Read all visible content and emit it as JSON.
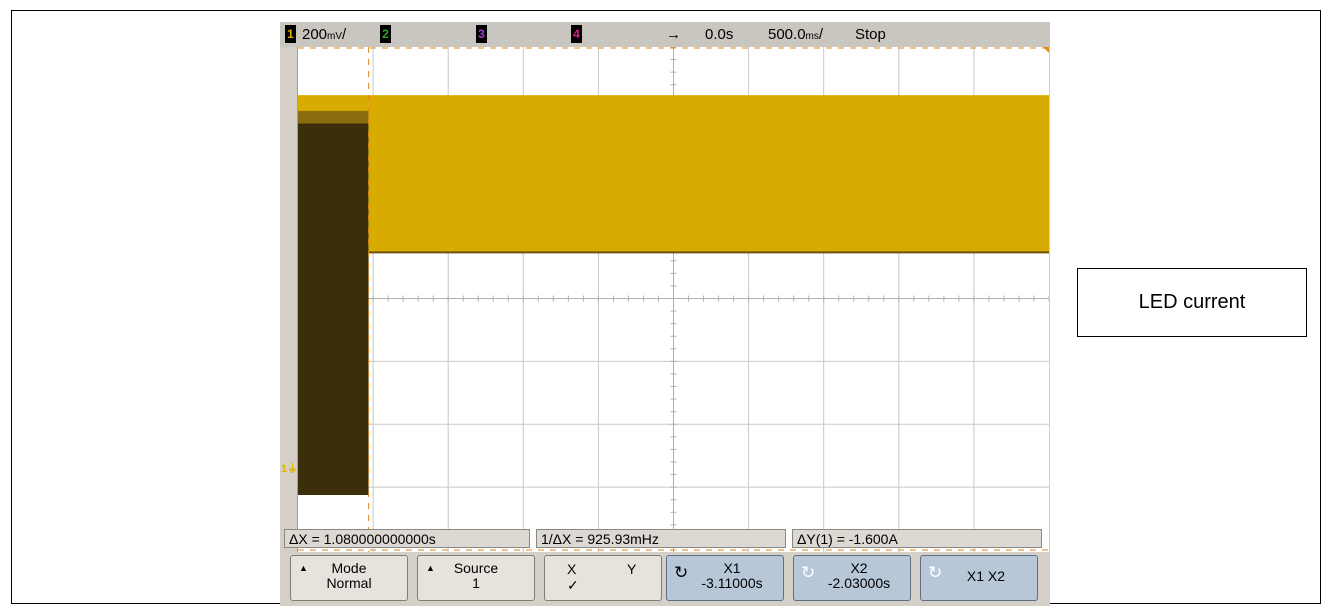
{
  "annotation": {
    "label": "LED current"
  },
  "topbar": {
    "ch1": "1",
    "ch1_scale": "200",
    "ch2": "2",
    "ch3": "3",
    "ch4": "4",
    "trigger_arrow": "→",
    "delay": "0.0s",
    "timebase": "500.0",
    "run_state": "Stop"
  },
  "measurements": {
    "dx": "ΔX = 1.080000000000s",
    "inv_dx": "1/ΔX = 925.93mHz",
    "dy": "ΔY(1) = -1.600A"
  },
  "softkeys": [
    {
      "line1": "Mode",
      "line2": "Normal"
    },
    {
      "line1": "Source",
      "line2": "1"
    },
    {
      "x": "X",
      "y": "Y",
      "check": "✓"
    },
    {
      "line1": "X1",
      "line2": "-3.11000s"
    },
    {
      "line1": "X2",
      "line2": "-2.03000s"
    },
    {
      "line1": "X1 X2"
    }
  ],
  "colors": {
    "ch1": "#e0b000",
    "ch2": "#2ca02c",
    "ch3": "#9a40d0",
    "ch4": "#e0208a",
    "trace_bright": "#d7ab00",
    "trace_dark": "#3a2f0a",
    "cursor": "#e28a18"
  },
  "chart_data": {
    "type": "line",
    "series": [
      {
        "name": "1",
        "description_free": true,
        "points_seconds_vs_divisions": [
          [
            -3.8,
            0.0
          ],
          [
            -3.11,
            0.0
          ],
          [
            -3.11,
            6.2
          ],
          [
            -2.03,
            6.2
          ],
          [
            -2.03,
            3.7
          ],
          [
            1.25,
            3.7
          ]
        ]
      }
    ],
    "cursors_x_seconds": [
      -3.11,
      -2.03
    ],
    "grid": true
  }
}
